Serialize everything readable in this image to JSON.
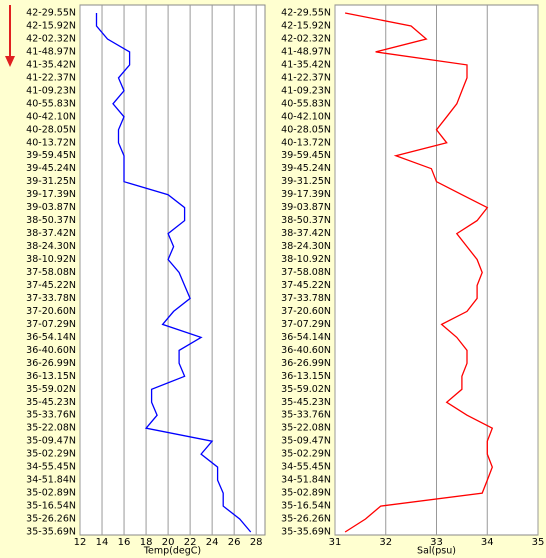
{
  "chart_data": [
    {
      "type": "line",
      "orientation": "horizontal",
      "x_label": "Temp(degC)",
      "color": "#0000ff",
      "categories": [
        "42-29.55N",
        "42-15.92N",
        "42-02.32N",
        "41-48.97N",
        "41-35.42N",
        "41-22.37N",
        "41-09.23N",
        "40-55.83N",
        "40-42.10N",
        "40-28.05N",
        "40-13.72N",
        "39-59.45N",
        "39-45.24N",
        "39-31.25N",
        "39-17.39N",
        "39-03.87N",
        "38-50.37N",
        "38-37.42N",
        "38-24.30N",
        "38-10.92N",
        "37-58.08N",
        "37-45.22N",
        "37-33.78N",
        "37-20.60N",
        "37-07.29N",
        "36-54.14N",
        "36-40.60N",
        "36-26.99N",
        "36-13.15N",
        "35-59.02N",
        "35-45.23N",
        "35-33.76N",
        "35-22.08N",
        "35-09.47N",
        "35-02.29N",
        "34-55.45N",
        "34-51.84N",
        "35-02.89N",
        "35-16.54N",
        "35-26.26N",
        "35-35.69N"
      ],
      "values": [
        13.5,
        13.5,
        14.5,
        16.5,
        16.5,
        15.5,
        16,
        15,
        16,
        15.5,
        15.5,
        16,
        16,
        16,
        20,
        21.5,
        21.5,
        20,
        20.5,
        20,
        21,
        21.5,
        22,
        20.5,
        19.5,
        23,
        21,
        21,
        21.5,
        18.5,
        18.5,
        19,
        18,
        24,
        23,
        24.5,
        24.5,
        25,
        25,
        26.5,
        27.5
      ],
      "xlim": [
        12,
        28.8
      ],
      "xticks": [
        12,
        14,
        16,
        18,
        20,
        22,
        24,
        26,
        28
      ],
      "grid": true
    },
    {
      "type": "line",
      "orientation": "horizontal",
      "x_label": "Sal(psu)",
      "color": "#ff0000",
      "categories": [
        "42-29.55N",
        "42-15.92N",
        "42-02.32N",
        "41-48.97N",
        "41-35.42N",
        "41-22.37N",
        "41-09.23N",
        "40-55.83N",
        "40-42.10N",
        "40-28.05N",
        "40-13.72N",
        "39-59.45N",
        "39-45.24N",
        "39-31.25N",
        "39-17.39N",
        "39-03.87N",
        "38-50.37N",
        "38-37.42N",
        "38-24.30N",
        "38-10.92N",
        "37-58.08N",
        "37-45.22N",
        "37-33.78N",
        "37-20.60N",
        "37-07.29N",
        "36-54.14N",
        "36-40.60N",
        "36-26.99N",
        "36-13.15N",
        "35-59.02N",
        "35-45.23N",
        "35-33.76N",
        "35-22.08N",
        "35-09.47N",
        "35-02.29N",
        "34-55.45N",
        "34-51.84N",
        "35-02.89N",
        "35-16.54N",
        "35-26.26N",
        "35-35.69N"
      ],
      "values": [
        31.2,
        32.5,
        32.8,
        31.8,
        33.6,
        33.6,
        33.5,
        33.4,
        33.2,
        33,
        33.2,
        32.2,
        32.9,
        33,
        33.5,
        34,
        33.8,
        33.4,
        33.6,
        33.8,
        33.9,
        33.8,
        33.8,
        33.6,
        33.1,
        33.4,
        33.6,
        33.6,
        33.5,
        33.5,
        33.2,
        33.6,
        34.1,
        34,
        34,
        34.1,
        34,
        33.9,
        31.9,
        31.6,
        31.2
      ],
      "xlim": [
        31,
        35
      ],
      "xticks": [
        31,
        32,
        33,
        34,
        35
      ],
      "grid": true
    }
  ]
}
